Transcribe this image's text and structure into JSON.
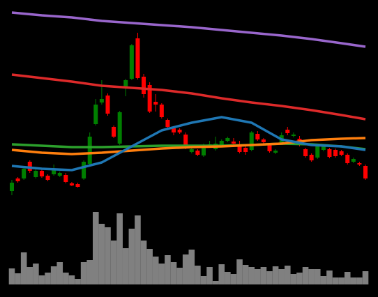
{
  "chart_data": [
    {
      "type": "candlestick",
      "up_color": "#007f00",
      "down_color": "#ff0000",
      "ylim": [
        0,
        300
      ],
      "open": [
        26,
        44,
        44,
        68,
        46,
        55,
        48,
        50,
        48,
        49,
        37,
        36,
        44,
        65,
        122,
        153,
        163,
        118,
        94,
        173,
        187,
        245,
        190,
        178,
        154,
        150,
        128,
        116,
        114,
        107,
        82,
        84,
        77,
        90,
        86,
        92,
        98,
        97,
        92,
        88,
        85,
        108,
        100,
        92,
        81,
        95,
        114,
        105,
        101,
        86,
        78,
        74,
        85,
        86,
        85,
        83,
        78,
        68,
        66,
        62
      ],
      "high": [
        42,
        46,
        60,
        70,
        58,
        57,
        50,
        64,
        54,
        52,
        39,
        38,
        70,
        110,
        158,
        185,
        166,
        120,
        141,
        187,
        237,
        253,
        194,
        182,
        165,
        152,
        130,
        118,
        116,
        110,
        88,
        86,
        94,
        98,
        104,
        100,
        104,
        102,
        98,
        90,
        112,
        112,
        102,
        94,
        86,
        110,
        118,
        110,
        105,
        88,
        80,
        92,
        92,
        88,
        87,
        85,
        80,
        74,
        68,
        64
      ],
      "low": [
        20,
        38,
        42,
        52,
        44,
        45,
        40,
        48,
        46,
        37,
        33,
        31,
        42,
        62,
        120,
        150,
        134,
        102,
        92,
        162,
        185,
        186,
        160,
        138,
        140,
        130,
        116,
        106,
        108,
        86,
        80,
        76,
        75,
        88,
        84,
        90,
        96,
        92,
        80,
        78,
        83,
        98,
        94,
        81,
        79,
        93,
        106,
        103,
        90,
        74,
        68,
        72,
        83,
        73,
        74,
        76,
        64,
        66,
        62,
        42
      ],
      "close": [
        38,
        40,
        58,
        55,
        55,
        47,
        42,
        56,
        52,
        39,
        34,
        32,
        68,
        104,
        150,
        158,
        137,
        104,
        139,
        185,
        235,
        188,
        165,
        140,
        150,
        132,
        118,
        110,
        110,
        90,
        86,
        78,
        92,
        93,
        94,
        98,
        102,
        94,
        82,
        82,
        110,
        100,
        96,
        83,
        84,
        106,
        109,
        107,
        92,
        76,
        70,
        90,
        90,
        75,
        76,
        78,
        66,
        72,
        64,
        44
      ],
      "lines": [
        {
          "color": "#9966cc",
          "x": [
            0,
            5,
            10,
            15,
            20,
            25,
            30,
            35,
            40,
            45,
            50,
            55,
            59
          ],
          "values": [
            282,
            278,
            275,
            270,
            267,
            264,
            261,
            257,
            253,
            249,
            244,
            238,
            233
          ]
        },
        {
          "color": "#dd2a2a",
          "x": [
            0,
            5,
            10,
            15,
            20,
            25,
            30,
            35,
            40,
            45,
            50,
            55,
            59
          ],
          "values": [
            193,
            188,
            183,
            177,
            174,
            171,
            166,
            159,
            153,
            148,
            142,
            135,
            129
          ]
        },
        {
          "color": "#2ca02c",
          "x": [
            0,
            5,
            10,
            15,
            20,
            25,
            30,
            35,
            40,
            45,
            50,
            55,
            59
          ],
          "values": [
            93,
            91,
            89,
            89,
            90,
            91,
            91,
            91,
            92,
            94,
            93,
            90,
            86
          ]
        },
        {
          "color": "#ff7f0e",
          "x": [
            0,
            5,
            10,
            15,
            20,
            25,
            30,
            35,
            40,
            45,
            50,
            55,
            59
          ],
          "values": [
            85,
            81,
            79,
            81,
            84,
            87,
            89,
            90,
            92,
            94,
            99,
            101,
            102
          ]
        },
        {
          "color": "#1f77b4",
          "x": [
            0,
            5,
            10,
            15,
            20,
            25,
            30,
            35,
            40,
            45,
            50,
            55,
            59
          ],
          "values": [
            62,
            58,
            56,
            67,
            90,
            113,
            124,
            132,
            124,
            100,
            92,
            90,
            85
          ]
        }
      ]
    },
    {
      "type": "bar",
      "color": "#808080",
      "ylim": [
        0,
        110
      ],
      "values": [
        23,
        16,
        46,
        25,
        30,
        13,
        17,
        26,
        32,
        17,
        13,
        8,
        32,
        35,
        104,
        87,
        82,
        63,
        102,
        52,
        80,
        99,
        63,
        51,
        40,
        30,
        42,
        32,
        24,
        43,
        50,
        27,
        12,
        25,
        5,
        29,
        18,
        15,
        36,
        28,
        25,
        22,
        25,
        19,
        26,
        22,
        27,
        15,
        17,
        25,
        22,
        22,
        12,
        20,
        10,
        10,
        18,
        10,
        10,
        19
      ]
    }
  ]
}
